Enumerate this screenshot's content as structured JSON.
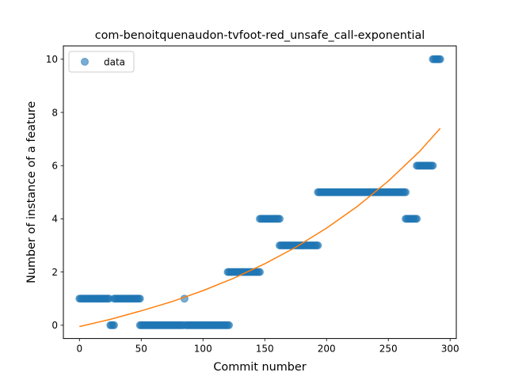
{
  "chart_data": {
    "type": "scatter",
    "title": "com-benoitquenaudon-tvfoot-red_unsafe_call-exponential",
    "xlabel": "Commit number",
    "ylabel": "Number of instance of a feature",
    "xlim": [
      -13,
      305
    ],
    "ylim": [
      -0.5,
      10.5
    ],
    "x_ticks": [
      0,
      50,
      100,
      150,
      200,
      250,
      300
    ],
    "y_ticks": [
      0,
      2,
      4,
      6,
      8,
      10
    ],
    "legend": {
      "placement": "top-left",
      "entries": [
        "data"
      ]
    },
    "grid": false,
    "colors": {
      "points": "#1f77b4",
      "fit": "#ff7f0e"
    },
    "series": [
      {
        "name": "data",
        "kind": "points",
        "segments": [
          {
            "x_start": 0,
            "x_end": 24,
            "y": 1
          },
          {
            "x_start": 25,
            "x_end": 28,
            "y": 0
          },
          {
            "x_start": 28,
            "x_end": 49,
            "y": 1
          },
          {
            "x_start": 49,
            "x_end": 84,
            "y": 0
          },
          {
            "x_start": 85,
            "x_end": 85,
            "y": 1
          },
          {
            "x_start": 86,
            "x_end": 121,
            "y": 0
          },
          {
            "x_start": 120,
            "x_end": 146,
            "y": 2
          },
          {
            "x_start": 146,
            "x_end": 162,
            "y": 4
          },
          {
            "x_start": 162,
            "x_end": 193,
            "y": 3
          },
          {
            "x_start": 193,
            "x_end": 264,
            "y": 5
          },
          {
            "x_start": 264,
            "x_end": 273,
            "y": 4
          },
          {
            "x_start": 273,
            "x_end": 286,
            "y": 6
          },
          {
            "x_start": 286,
            "x_end": 292,
            "y": 10
          }
        ]
      },
      {
        "name": "",
        "kind": "line",
        "x": [
          0,
          25,
          50,
          75,
          100,
          125,
          150,
          175,
          200,
          225,
          250,
          275,
          292
        ],
        "y": [
          -0.05,
          0.22,
          0.54,
          0.89,
          1.3,
          1.77,
          2.31,
          2.93,
          3.65,
          4.47,
          5.42,
          6.52,
          7.4
        ]
      }
    ]
  }
}
